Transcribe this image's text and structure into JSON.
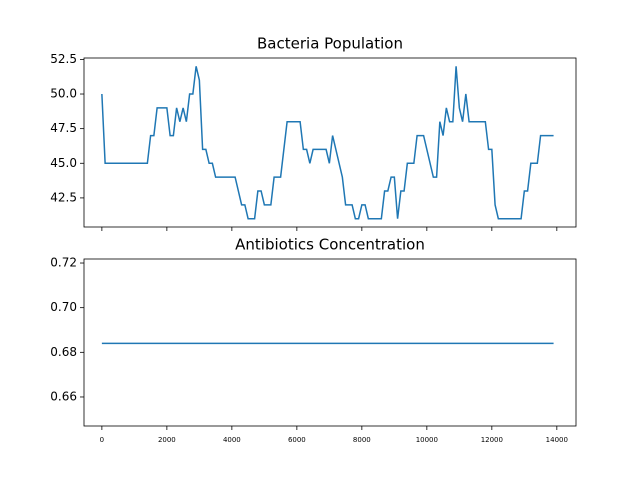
{
  "chart_data": [
    {
      "type": "line",
      "title": "Bacteria Population",
      "x": [
        0,
        100,
        1400,
        1500,
        1600,
        1700,
        2000,
        2100,
        2200,
        2300,
        2400,
        2500,
        2600,
        2700,
        2800,
        2900,
        3000,
        3100,
        3200,
        3300,
        3400,
        3500,
        4100,
        4300,
        4400,
        4500,
        4700,
        4800,
        4900,
        5000,
        5200,
        5300,
        5500,
        5700,
        6100,
        6200,
        6300,
        6400,
        6500,
        6900,
        7000,
        7100,
        7400,
        7500,
        7700,
        7800,
        7900,
        8000,
        8100,
        8200,
        8600,
        8700,
        8800,
        8900,
        9000,
        9100,
        9200,
        9300,
        9400,
        9600,
        9700,
        9900,
        10200,
        10300,
        10400,
        10500,
        10600,
        10700,
        10800,
        10900,
        11000,
        11100,
        11200,
        11300,
        11800,
        11900,
        12000,
        12100,
        12200,
        12900,
        13000,
        13100,
        13200,
        13400,
        13500,
        13900
      ],
      "series": [
        {
          "name": "Bacteria Population",
          "color": "#1f77b4",
          "values": [
            50,
            45,
            45,
            47,
            47,
            49,
            49,
            47,
            47,
            49,
            48,
            49,
            48,
            50,
            50,
            52,
            51,
            46,
            46,
            45,
            45,
            44,
            44,
            42,
            42,
            41,
            41,
            43,
            43,
            42,
            42,
            44,
            44,
            48,
            48,
            46,
            46,
            45,
            46,
            46,
            45,
            47,
            44,
            42,
            42,
            41,
            41,
            42,
            42,
            41,
            41,
            43,
            43,
            44,
            44,
            41,
            43,
            43,
            45,
            45,
            47,
            47,
            44,
            44,
            48,
            47,
            49,
            48,
            48,
            52,
            49,
            48,
            50,
            48,
            48,
            46,
            46,
            42,
            41,
            41,
            43,
            43,
            45,
            45,
            47,
            47
          ]
        }
      ],
      "xlim": [
        -550,
        14590
      ],
      "xticks": [
        0,
        2000,
        4000,
        6000,
        8000,
        10000,
        12000,
        14000
      ],
      "ylim": [
        40.4,
        52.6
      ],
      "yticks": [
        42.5,
        {
          "value": 45,
          "label": "45.0"
        },
        47.5,
        {
          "value": 50,
          "label": "50.0"
        },
        52.5
      ]
    },
    {
      "type": "line",
      "title": "Antibiotics Concentration",
      "x": [
        0,
        13900
      ],
      "series": [
        {
          "name": "Antibiotics Concentration",
          "color": "#1f77b4",
          "values": [
            0.684,
            0.684
          ]
        }
      ],
      "xlim": [
        -550,
        14590
      ],
      "xticks": [
        0,
        2000,
        4000,
        6000,
        8000,
        10000,
        12000,
        14000
      ],
      "ylim": [
        0.647,
        0.7218
      ],
      "yticks": [
        0.66,
        0.68,
        {
          "value": 0.7,
          "label": "0.70"
        },
        0.72
      ]
    }
  ]
}
